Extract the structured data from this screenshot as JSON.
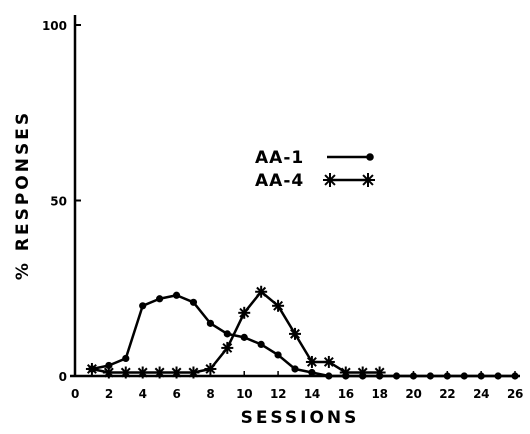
{
  "chart_data": {
    "type": "line",
    "title": "",
    "xlabel": "SESSIONS",
    "ylabel": "% RESPONSES",
    "xlim": [
      0,
      26
    ],
    "ylim": [
      0,
      100
    ],
    "xticks": [
      0,
      2,
      4,
      6,
      8,
      10,
      12,
      14,
      16,
      18,
      20,
      22,
      24,
      26
    ],
    "yticks": [
      {
        "value": 0,
        "label": "0"
      },
      {
        "value": 50,
        "label": "50"
      },
      {
        "value": 100,
        "label": "100"
      }
    ],
    "grid": false,
    "legend_position": "center",
    "series": [
      {
        "name": "AA-1",
        "marker": "circle",
        "x": [
          1,
          2,
          3,
          4,
          5,
          6,
          7,
          8,
          9,
          10,
          11,
          12,
          13,
          14,
          15,
          16,
          17,
          18,
          19,
          20,
          21,
          22,
          23,
          24,
          25,
          26
        ],
        "y": [
          2,
          3,
          5,
          20,
          22,
          23,
          21,
          15,
          12,
          11,
          9,
          6,
          2,
          1,
          0,
          0,
          0,
          0,
          0,
          0,
          0,
          0,
          0,
          0,
          0,
          0
        ]
      },
      {
        "name": "AA-4",
        "marker": "asterisk",
        "x": [
          1,
          2,
          3,
          4,
          5,
          6,
          7,
          8,
          9,
          10,
          11,
          12,
          13,
          14,
          15,
          16,
          17,
          18
        ],
        "y": [
          2,
          1,
          1,
          1,
          1,
          1,
          1,
          2,
          8,
          18,
          24,
          20,
          12,
          4,
          4,
          1,
          1,
          1
        ]
      }
    ]
  }
}
